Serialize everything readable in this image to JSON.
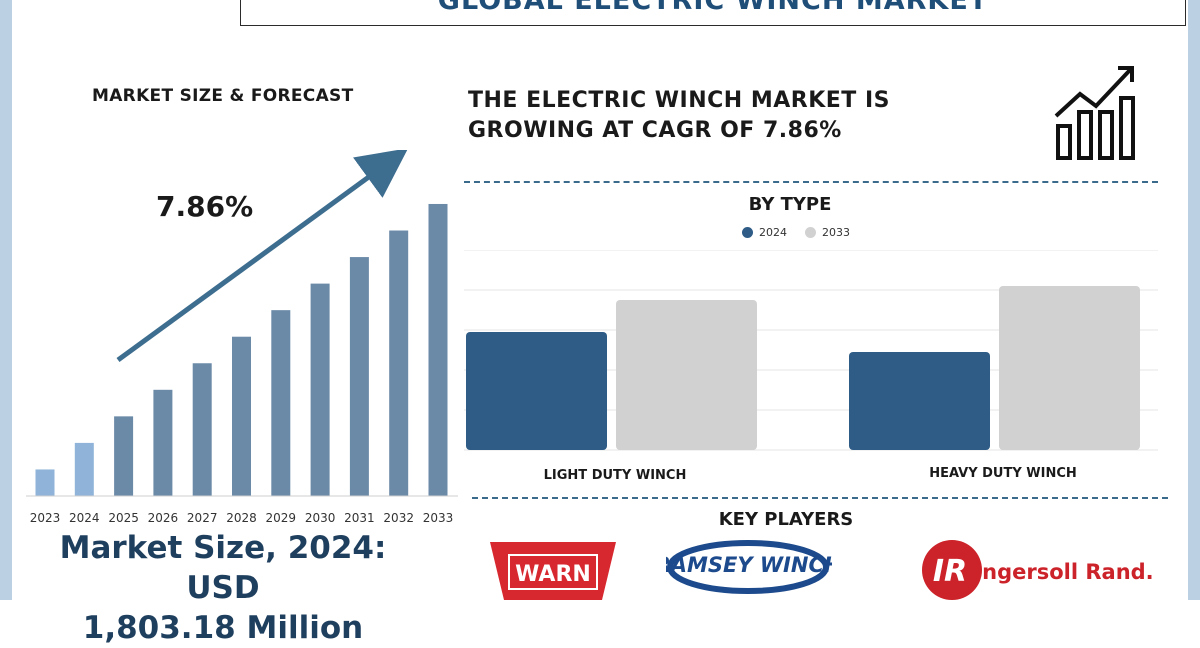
{
  "title": "GLOBAL ELECTRIC WINCH MARKET",
  "left_panel": {
    "heading": "MARKET SIZE & FORECAST",
    "cagr_label": "7.86%",
    "market_size_line1": "Market Size, 2024: USD",
    "market_size_line2": "1,803.18 Million"
  },
  "headline": {
    "line1": "THE ELECTRIC WINCH MARKET IS",
    "line2": "GROWING AT CAGR OF 7.86%"
  },
  "by_type": {
    "title": "BY TYPE",
    "legend": [
      "2024",
      "2033"
    ]
  },
  "key_players": {
    "title": "KEY PLAYERS",
    "logos": [
      "WARN",
      "RAMSEY WINCH",
      "Ingersoll Rand."
    ]
  },
  "colors": {
    "accent": "#1f4e79",
    "bar_2024": "#2e5c86",
    "bar_2033": "#d1d1d1",
    "forecast_bar": "#6b8aa8",
    "early_bar": "#8fb3d9",
    "warn_red": "#d8282f",
    "ramsey_blue": "#1c4a8c",
    "ir_red": "#cc2229"
  },
  "chart_data": [
    {
      "type": "bar",
      "title": "MARKET SIZE & FORECAST",
      "categories": [
        "2023",
        "2024",
        "2025",
        "2026",
        "2027",
        "2028",
        "2029",
        "2030",
        "2031",
        "2032",
        "2033"
      ],
      "values": [
        1,
        2,
        3,
        4,
        5,
        6,
        7,
        8,
        9,
        10,
        11
      ],
      "annotation": "7.86%",
      "ylim": [
        0,
        11.3
      ],
      "grid": false,
      "axes_visible": false
    },
    {
      "type": "bar",
      "title": "BY TYPE",
      "categories": [
        "LIGHT DUTY WINCH",
        "HEAVY DUTY WINCH"
      ],
      "series": [
        {
          "name": "2024",
          "values": [
            0.59,
            0.49
          ]
        },
        {
          "name": "2033",
          "values": [
            0.75,
            0.82
          ]
        }
      ],
      "ylim": [
        0,
        1
      ],
      "grid": true,
      "legend": "top-center"
    }
  ]
}
